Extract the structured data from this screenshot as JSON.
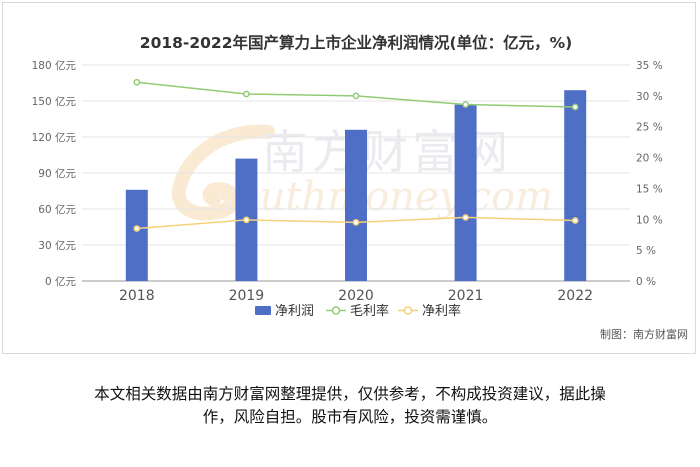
{
  "chart_data": {
    "type": "bar",
    "title": "2018-2022年国产算力上市企业净利润情况(单位：亿元，%)",
    "categories": [
      "2018",
      "2019",
      "2020",
      "2021",
      "2022"
    ],
    "series": [
      {
        "name": "净利润",
        "type": "bar",
        "axis": "left",
        "color": "#4f6fc7",
        "values": [
          76,
          102,
          126,
          147,
          159
        ]
      },
      {
        "name": "毛利率",
        "type": "line",
        "axis": "right",
        "color": "#91cc75",
        "values": [
          32.2,
          30.3,
          30.0,
          28.6,
          28.2
        ]
      },
      {
        "name": "净利率",
        "type": "line",
        "axis": "right",
        "color": "#f5d17a",
        "values": [
          8.5,
          9.9,
          9.5,
          10.3,
          9.8
        ]
      }
    ],
    "left_axis": {
      "min": 0,
      "max": 180,
      "ticks": [
        "0 亿元",
        "30 亿元",
        "60 亿元",
        "90 亿元",
        "120 亿元",
        "150 亿元",
        "180 亿元"
      ]
    },
    "right_axis": {
      "min": 0,
      "max": 35,
      "ticks": [
        "0 %",
        "5 %",
        "10 %",
        "15 %",
        "20 %",
        "25 %",
        "30 %",
        "35 %"
      ]
    },
    "grid": true,
    "legend_position": "bottom"
  },
  "watermark": {
    "cn": "南方财富网",
    "en": "southmoney.com"
  },
  "source_note": "制图：南方财富网",
  "disclaimer_lines": [
    "本文相关数据由南方财富网整理提供，仅供参考，不构成投资建议，据此操",
    "作，风险自担。股市有风险，投资需谨慎。"
  ]
}
